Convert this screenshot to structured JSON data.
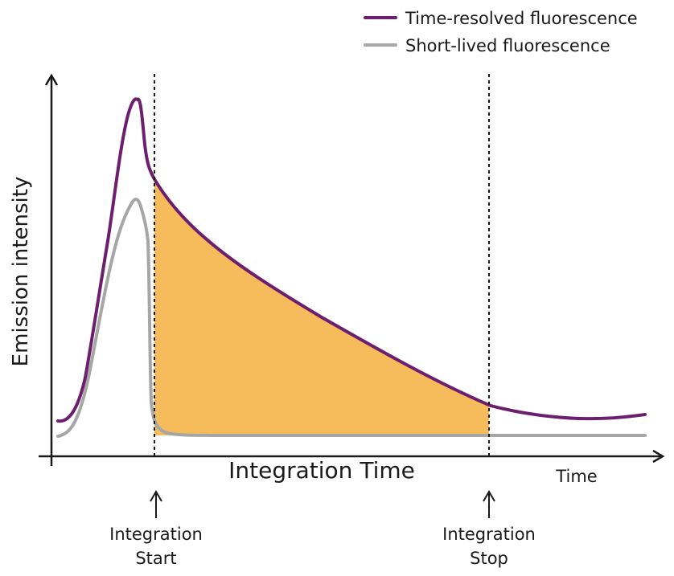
{
  "legend": {
    "items": [
      {
        "label": "Time-resolved fluorescence",
        "color": "#6d1f6f"
      },
      {
        "label": "Short-lived fluorescence",
        "color": "#a6a6a6"
      }
    ]
  },
  "axes": {
    "y_label": "Emission intensity",
    "x_label": "Integration Time",
    "x_end_label": "Time"
  },
  "markers": {
    "start": {
      "line1": "Integration",
      "line2": "Start"
    },
    "stop": {
      "line1": "Integration",
      "line2": "Stop"
    }
  },
  "colors": {
    "time_resolved": "#6d1f6f",
    "short_lived": "#a6a6a6",
    "integration_area": "#f6bb5b",
    "axis": "#1a1a1a"
  }
}
